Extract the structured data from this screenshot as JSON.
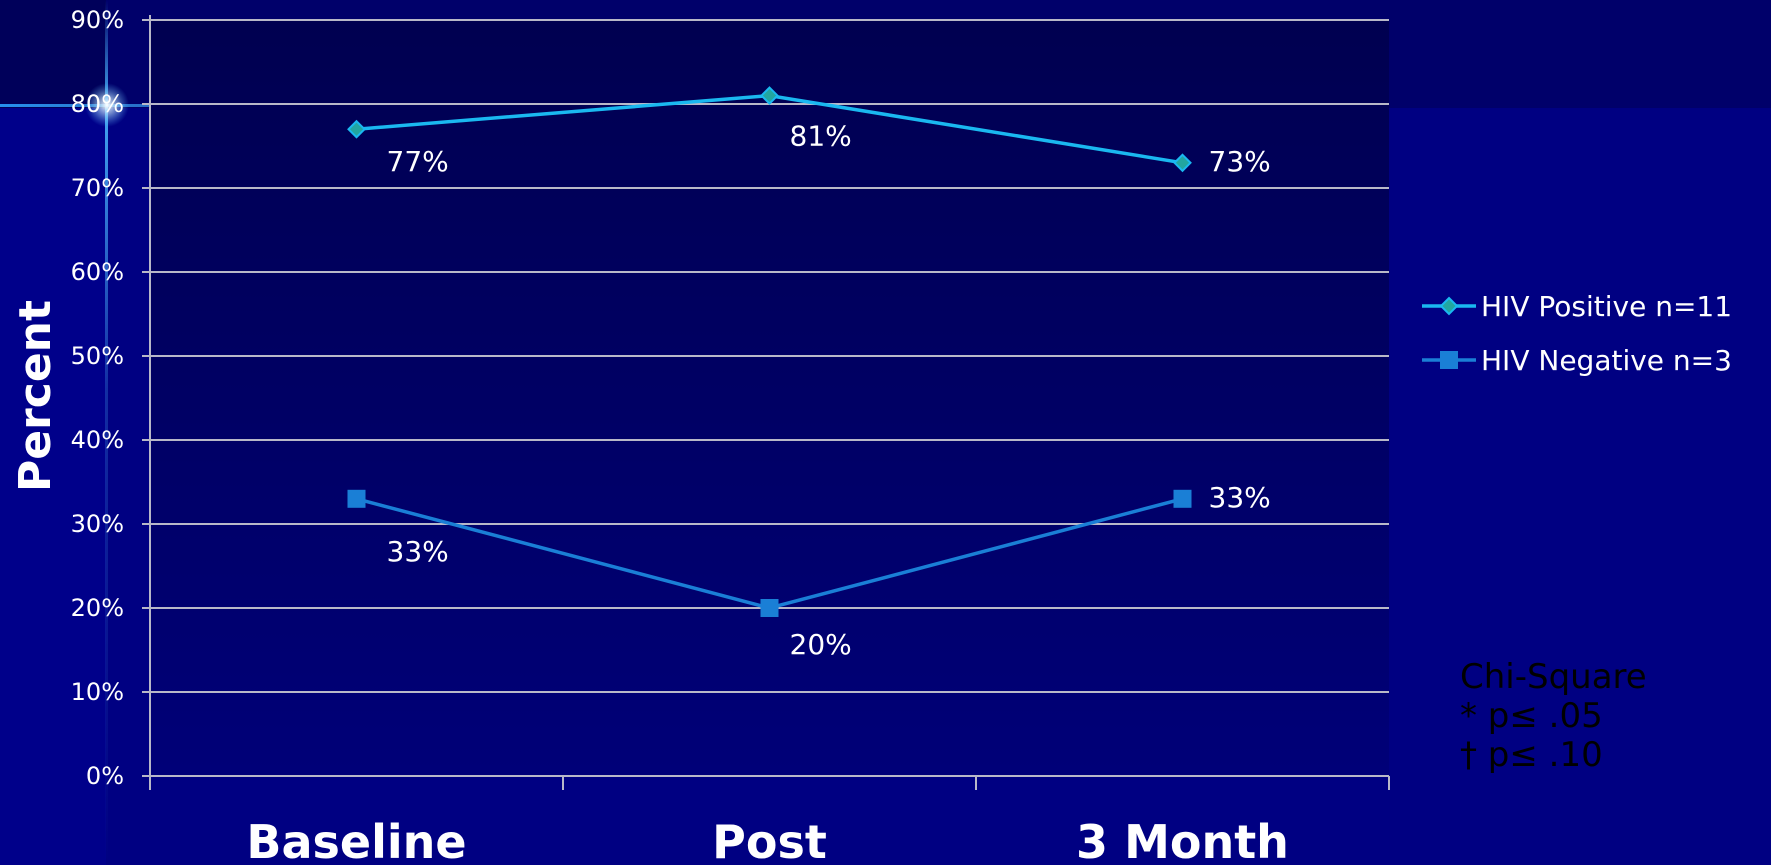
{
  "chart_data": {
    "type": "line",
    "categories": [
      "Baseline",
      "Post",
      "3 Month"
    ],
    "series": [
      {
        "name": "HIV Positive n=11",
        "values": [
          77,
          81,
          73
        ],
        "labels": [
          "77%",
          "81%",
          "73%"
        ],
        "marker": "diamond",
        "color": "#1ab8f0"
      },
      {
        "name": "HIV Negative n=3",
        "values": [
          33,
          20,
          33
        ],
        "labels": [
          "33%",
          "20%",
          "33%"
        ],
        "marker": "square",
        "color": "#1a7fd6"
      }
    ],
    "ylabel": "Percent",
    "xlabel": "",
    "ylim": [
      0,
      90
    ],
    "yticks": [
      "0%",
      "10%",
      "20%",
      "30%",
      "40%",
      "50%",
      "60%",
      "70%",
      "80%",
      "90%"
    ],
    "grid": true,
    "legend": "right"
  },
  "notes": {
    "title": "Chi-Square",
    "line1": "* p≤ .05",
    "line2": "† p≤ .10"
  },
  "colors": {
    "background": "#00008a",
    "plot_area": "#000064",
    "grid": "#b8b8c8",
    "text": "#ffffff",
    "notes_text": "#000000"
  }
}
